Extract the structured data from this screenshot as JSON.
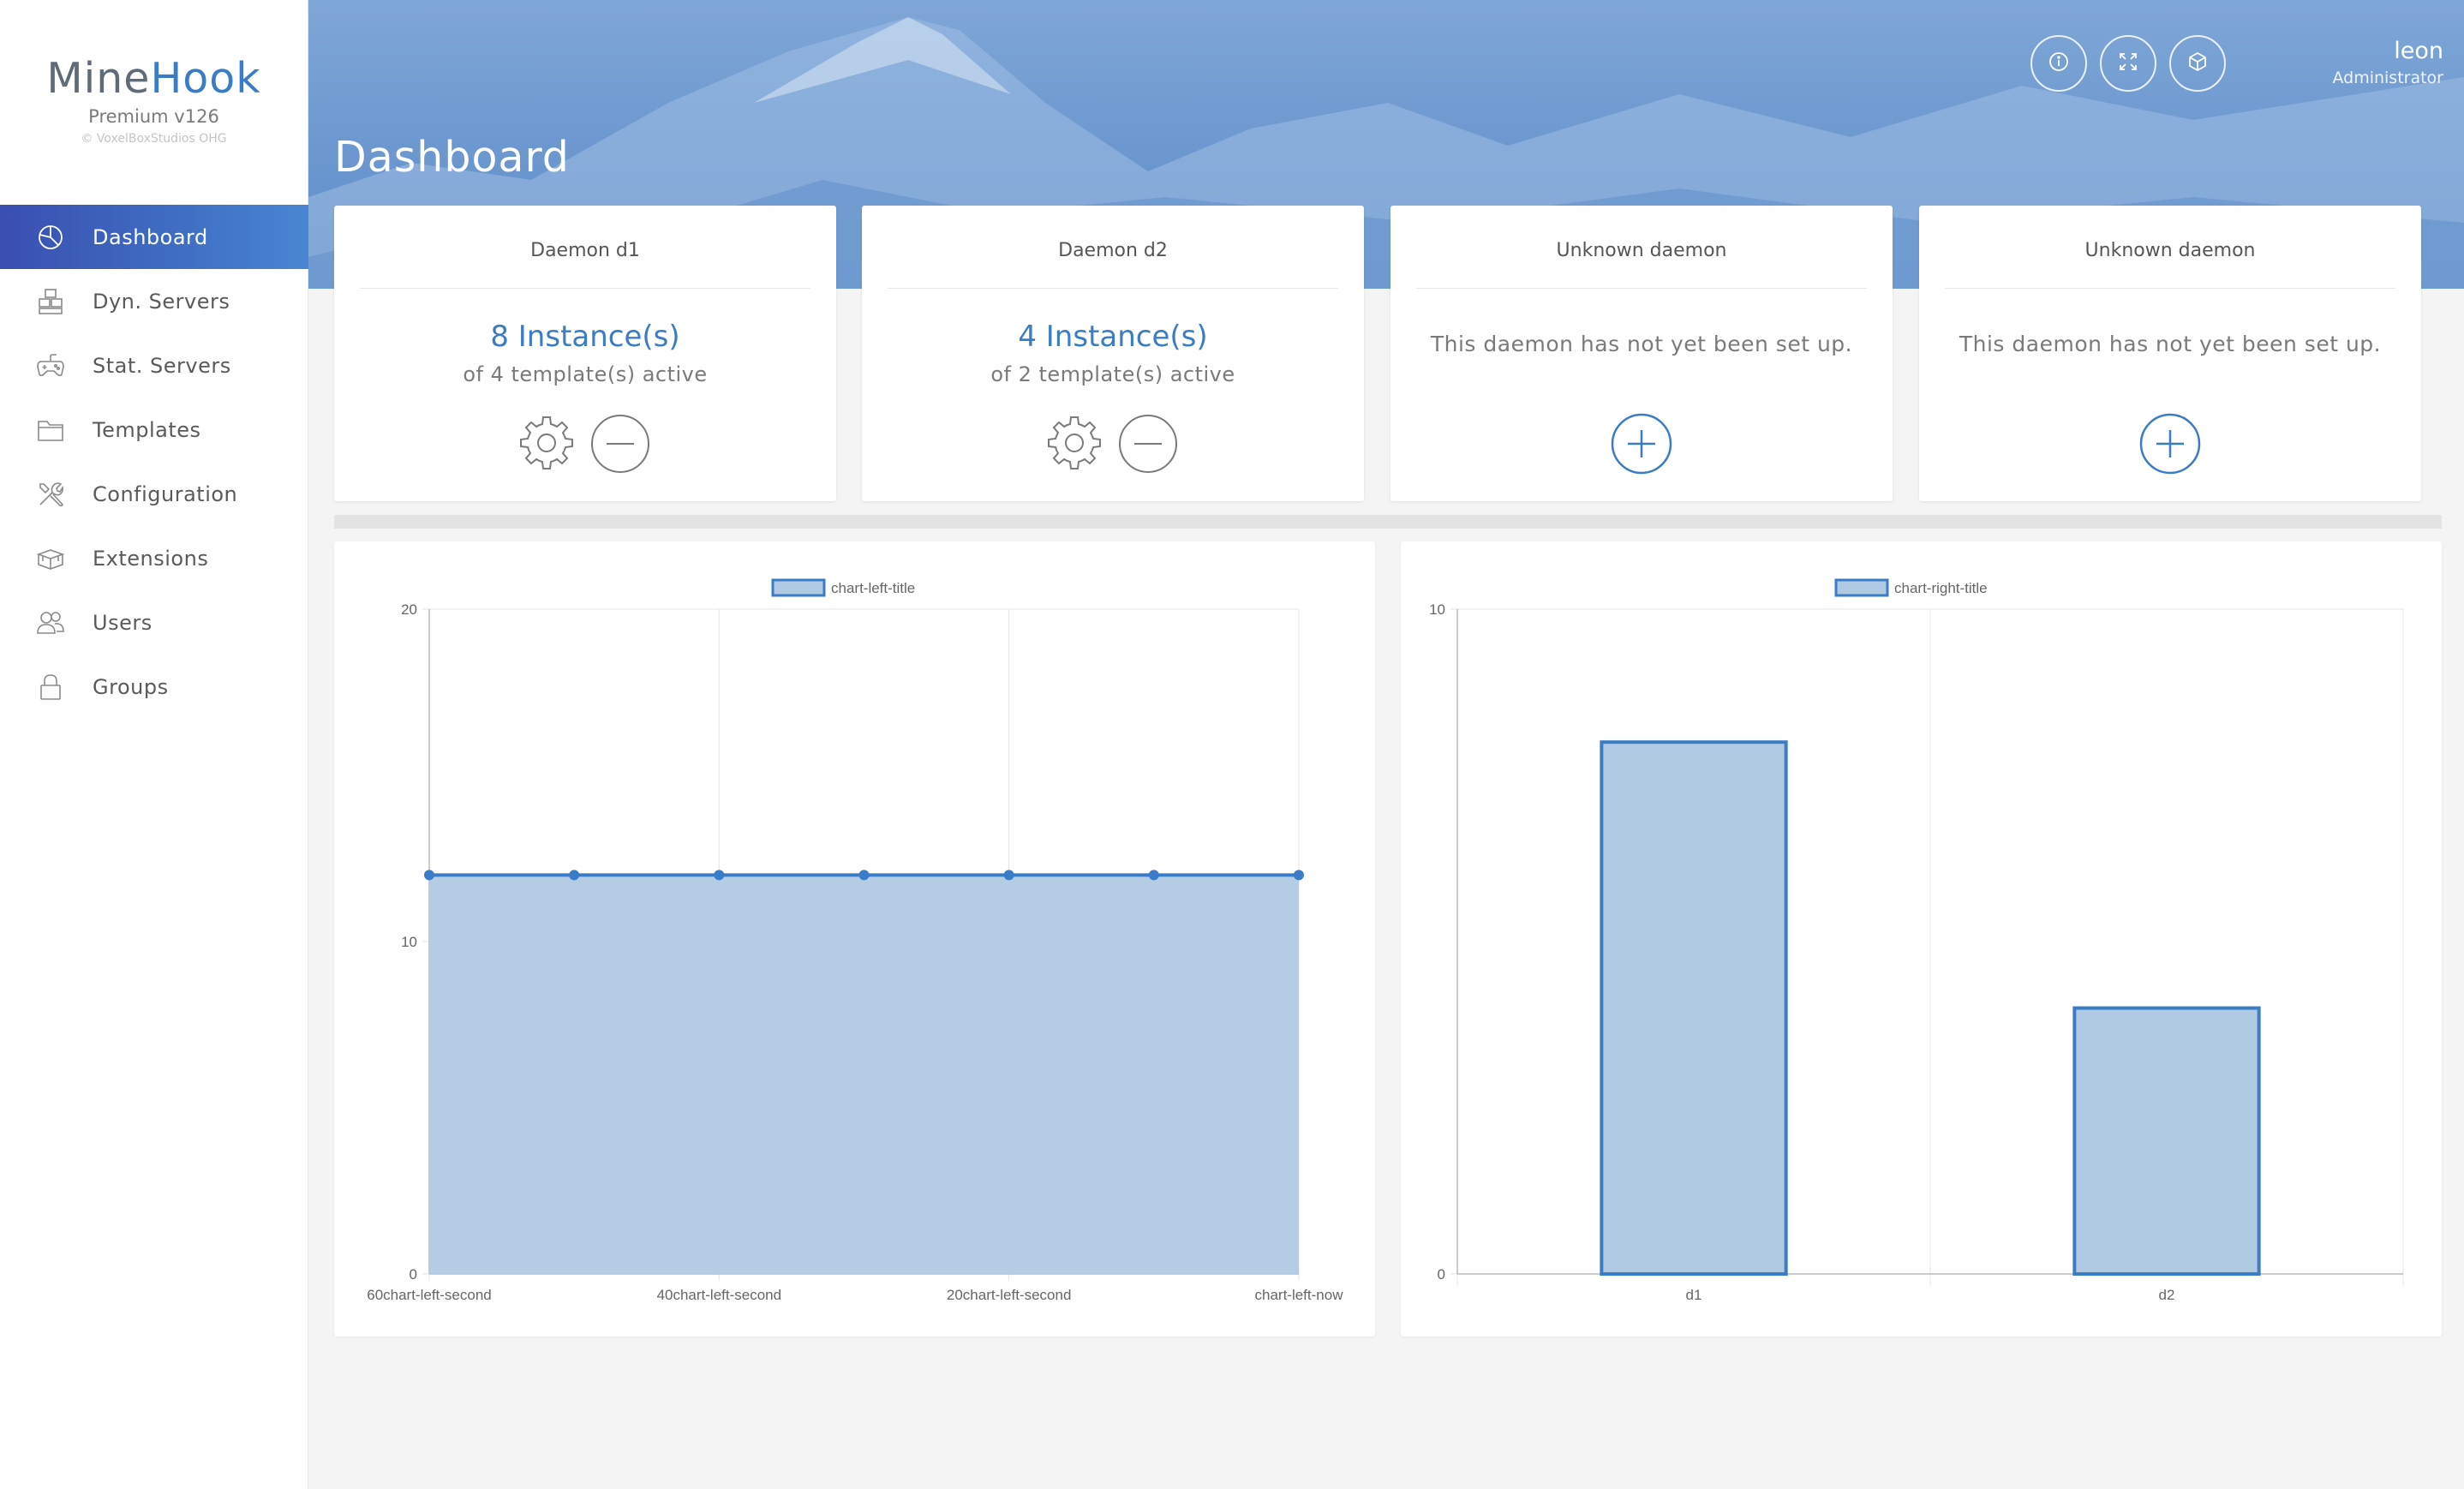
{
  "brand": {
    "name_part1": "Mine",
    "name_part2": "Hook",
    "version": "Premium v126",
    "copyright": "© VoxelBoxStudios OHG"
  },
  "nav": {
    "items": [
      {
        "label": "Dashboard",
        "icon": "pie-chart-icon",
        "active": true
      },
      {
        "label": "Dyn. Servers",
        "icon": "boxes-icon",
        "active": false
      },
      {
        "label": "Stat. Servers",
        "icon": "gamepad-icon",
        "active": false
      },
      {
        "label": "Templates",
        "icon": "folder-icon",
        "active": false
      },
      {
        "label": "Configuration",
        "icon": "tools-icon",
        "active": false
      },
      {
        "label": "Extensions",
        "icon": "extension-box-icon",
        "active": false
      },
      {
        "label": "Users",
        "icon": "users-icon",
        "active": false
      },
      {
        "label": "Groups",
        "icon": "lock-icon",
        "active": false
      }
    ]
  },
  "header": {
    "title": "Dashboard",
    "buttons": [
      {
        "icon": "info-icon"
      },
      {
        "icon": "fullscreen-icon"
      },
      {
        "icon": "cube-icon"
      }
    ],
    "user": {
      "name": "leon",
      "role": "Administrator"
    }
  },
  "daemons": [
    {
      "title": "Daemon d1",
      "count": "8 Instance(s)",
      "sub": "of 4 template(s) active",
      "configured": true
    },
    {
      "title": "Daemon d2",
      "count": "4 Instance(s)",
      "sub": "of 2 template(s) active",
      "configured": true
    },
    {
      "title": "Unknown daemon",
      "message": "This daemon has not yet been set up.",
      "configured": false
    },
    {
      "title": "Unknown daemon",
      "message": "This daemon has not yet been set up.",
      "configured": false
    }
  ],
  "colors": {
    "accent": "#3a7cc5",
    "fill": "#b0cae4",
    "sidebar_active_start": "#3a4fb0",
    "sidebar_active_end": "#4a86d2"
  },
  "chart_data": [
    {
      "type": "area",
      "legend": "chart-left-title",
      "x": [
        "60chart-left-second",
        "",
        "40chart-left-second",
        "",
        "20chart-left-second",
        "",
        "chart-left-now"
      ],
      "values": [
        12,
        12,
        12,
        12,
        12,
        12,
        12
      ],
      "ylim": [
        0,
        20
      ],
      "yticks": [
        0,
        10,
        20
      ],
      "grid": true,
      "legend_position": "top"
    },
    {
      "type": "bar",
      "legend": "chart-right-title",
      "categories": [
        "d1",
        "d2"
      ],
      "values": [
        8,
        4
      ],
      "ylim": [
        0,
        10
      ],
      "yticks": [
        0,
        10
      ],
      "grid": true,
      "legend_position": "top"
    }
  ]
}
